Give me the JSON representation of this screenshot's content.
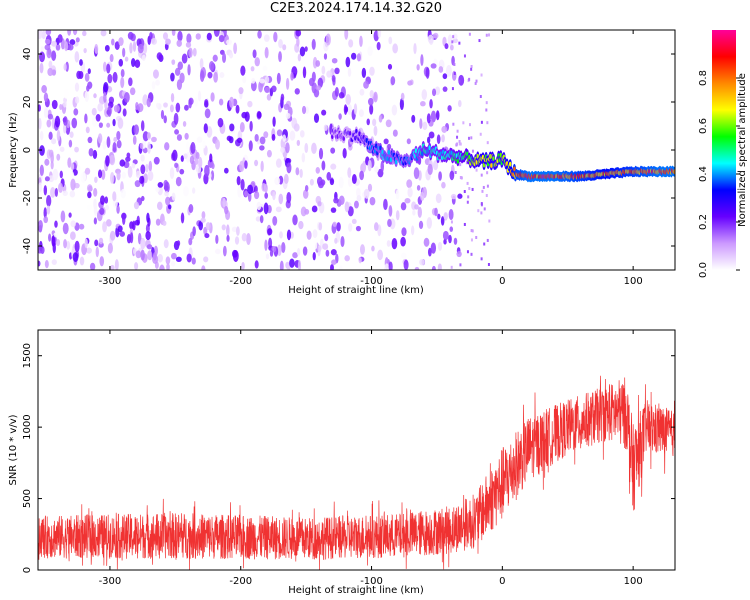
{
  "title": "C2E3.2024.174.14.32.G20",
  "chart_data": [
    {
      "type": "heatmap",
      "xlabel": "Height of straight line (km)",
      "ylabel": "Frequency (Hz)",
      "xlim": [
        -355,
        132
      ],
      "ylim": [
        -50,
        50
      ],
      "x_ticks": [
        -300,
        -200,
        -100,
        0,
        100
      ],
      "x_tick_labels": [
        "-300",
        "-200",
        "-100",
        "0",
        "100"
      ],
      "y_ticks": [
        -40,
        -20,
        0,
        20,
        40
      ],
      "y_tick_labels": [
        "-40",
        "-20",
        "0",
        "20",
        "40"
      ],
      "colorbar": {
        "label": "Normalized spectral amplitude",
        "range": [
          0.0,
          1.0
        ],
        "ticks": [
          0.0,
          0.2,
          0.4,
          0.6,
          0.8
        ],
        "tick_labels": [
          "0.0",
          "0.2",
          "0.4",
          "0.6",
          "0.8"
        ],
        "colors": [
          "#ffffff",
          "#cc99ff",
          "#6600ff",
          "#0000ff",
          "#00ffff",
          "#00ff00",
          "#ffff00",
          "#ff8800",
          "#ff0000",
          "#ff0099"
        ]
      },
      "noise_region": {
        "x_range": [
          -355,
          -30
        ],
        "y_range": [
          -50,
          50
        ],
        "amplitude": 0.15
      },
      "signal_track": [
        {
          "x": -130,
          "y": 7,
          "amp": 0.2
        },
        {
          "x": -110,
          "y": 6,
          "amp": 0.25
        },
        {
          "x": -100,
          "y": 1,
          "amp": 0.35
        },
        {
          "x": -90,
          "y": -2,
          "amp": 0.4
        },
        {
          "x": -75,
          "y": -5,
          "amp": 0.35
        },
        {
          "x": -60,
          "y": 0,
          "amp": 0.45
        },
        {
          "x": -45,
          "y": -2,
          "amp": 0.45
        },
        {
          "x": -30,
          "y": -3,
          "amp": 0.5
        },
        {
          "x": -15,
          "y": -5,
          "amp": 0.65
        },
        {
          "x": 0,
          "y": -4,
          "amp": 0.6
        },
        {
          "x": 10,
          "y": -10,
          "amp": 0.8
        },
        {
          "x": 20,
          "y": -11,
          "amp": 0.85
        },
        {
          "x": 40,
          "y": -11,
          "amp": 0.85
        },
        {
          "x": 60,
          "y": -11,
          "amp": 0.8
        },
        {
          "x": 80,
          "y": -10,
          "amp": 0.75
        },
        {
          "x": 100,
          "y": -9,
          "amp": 0.8
        },
        {
          "x": 120,
          "y": -9,
          "amp": 0.85
        },
        {
          "x": 132,
          "y": -9,
          "amp": 0.85
        }
      ]
    },
    {
      "type": "line",
      "xlabel": "Height of straight line (km)",
      "ylabel": "SNR (10 * v/v)",
      "xlim": [
        -355,
        132
      ],
      "ylim": [
        0,
        1680
      ],
      "x_ticks": [
        -300,
        -200,
        -100,
        0,
        100
      ],
      "x_tick_labels": [
        "-300",
        "-200",
        "-100",
        "0",
        "100"
      ],
      "y_ticks": [
        0,
        500,
        1000,
        1500
      ],
      "y_tick_labels": [
        "0",
        "500",
        "1000",
        "1500"
      ],
      "series_color": "#f03232",
      "envelope": [
        {
          "x": -355,
          "mean": 230,
          "spread": 230
        },
        {
          "x": -250,
          "mean": 240,
          "spread": 250
        },
        {
          "x": -150,
          "mean": 220,
          "spread": 230
        },
        {
          "x": -80,
          "mean": 240,
          "spread": 240
        },
        {
          "x": -40,
          "mean": 280,
          "spread": 260
        },
        {
          "x": -20,
          "mean": 350,
          "spread": 300
        },
        {
          "x": 0,
          "mean": 600,
          "spread": 400
        },
        {
          "x": 20,
          "mean": 850,
          "spread": 350
        },
        {
          "x": 50,
          "mean": 1000,
          "spread": 300
        },
        {
          "x": 80,
          "mean": 1100,
          "spread": 300
        },
        {
          "x": 95,
          "mean": 1100,
          "spread": 400
        },
        {
          "x": 100,
          "mean": 700,
          "spread": 500
        },
        {
          "x": 110,
          "mean": 1000,
          "spread": 300
        },
        {
          "x": 132,
          "mean": 950,
          "spread": 250
        }
      ]
    }
  ]
}
